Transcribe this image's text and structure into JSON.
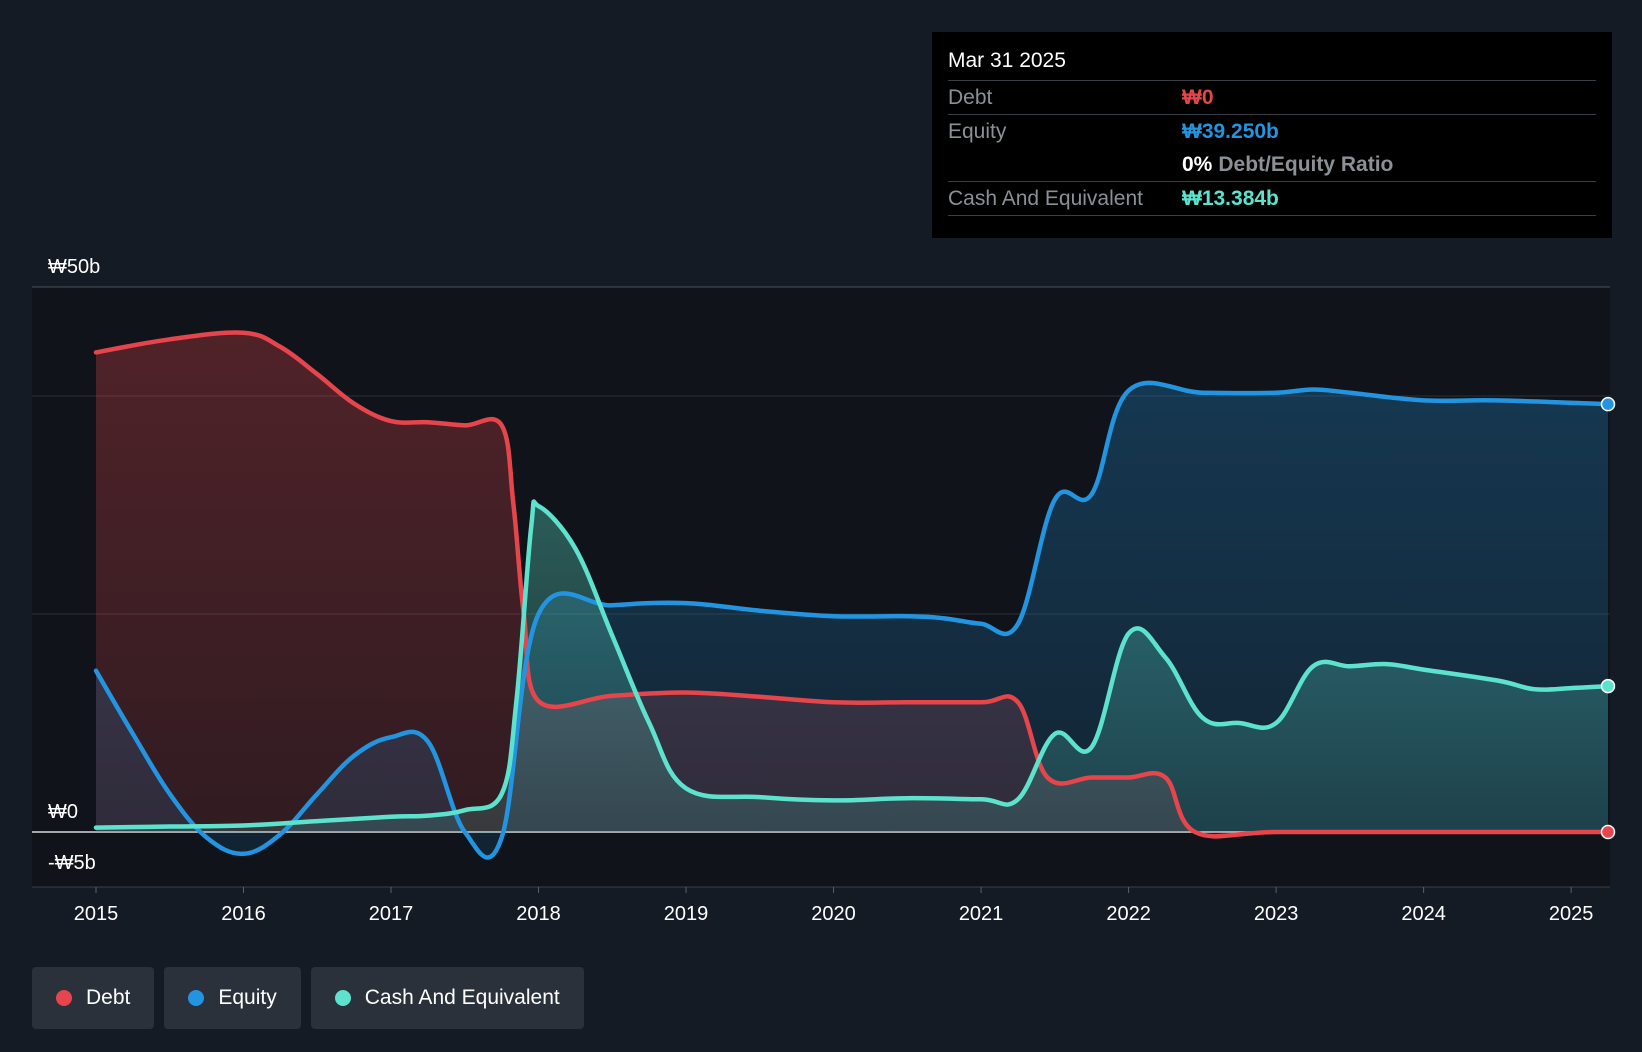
{
  "chart_data": {
    "type": "area",
    "y_unit": "₩",
    "ylim": [
      -5,
      50
    ],
    "y_ticks": [
      {
        "value": 50,
        "label": "₩50b"
      },
      {
        "value": 0,
        "label": "₩0"
      },
      {
        "value": -5,
        "label": "-₩5b"
      }
    ],
    "x_range": [
      2015.0,
      2025.25
    ],
    "x_ticks": [
      {
        "value": 2015,
        "label": "2015"
      },
      {
        "value": 2016,
        "label": "2016"
      },
      {
        "value": 2017,
        "label": "2017"
      },
      {
        "value": 2018,
        "label": "2018"
      },
      {
        "value": 2019,
        "label": "2019"
      },
      {
        "value": 2020,
        "label": "2020"
      },
      {
        "value": 2021,
        "label": "2021"
      },
      {
        "value": 2022,
        "label": "2022"
      },
      {
        "value": 2023,
        "label": "2023"
      },
      {
        "value": 2024,
        "label": "2024"
      },
      {
        "value": 2025,
        "label": "2025"
      }
    ],
    "gridlines": [
      50,
      40,
      20
    ],
    "series": [
      {
        "name": "Debt",
        "color": "#e5454b",
        "points": [
          [
            2015.0,
            44.0
          ],
          [
            2015.5,
            45.2
          ],
          [
            2016.0,
            45.8
          ],
          [
            2016.25,
            44.5
          ],
          [
            2016.5,
            42.0
          ],
          [
            2016.75,
            39.3
          ],
          [
            2017.0,
            37.7
          ],
          [
            2017.25,
            37.6
          ],
          [
            2017.5,
            37.3
          ],
          [
            2017.75,
            37.3
          ],
          [
            2017.83,
            30
          ],
          [
            2017.9,
            20
          ],
          [
            2018.0,
            12.0
          ],
          [
            2018.5,
            12.5
          ],
          [
            2019.0,
            12.8
          ],
          [
            2019.5,
            12.4
          ],
          [
            2020.0,
            11.9
          ],
          [
            2020.5,
            11.9
          ],
          [
            2021.0,
            11.9
          ],
          [
            2021.25,
            11.9
          ],
          [
            2021.45,
            5.0
          ],
          [
            2021.75,
            5.0
          ],
          [
            2022.0,
            5.0
          ],
          [
            2022.25,
            5.0
          ],
          [
            2022.45,
            0.0
          ],
          [
            2023.0,
            0.0
          ],
          [
            2024.0,
            0.0
          ],
          [
            2025.25,
            0.0
          ]
        ]
      },
      {
        "name": "Equity",
        "color": "#2394df",
        "points": [
          [
            2015.0,
            14.8
          ],
          [
            2015.25,
            9.0
          ],
          [
            2015.5,
            3.5
          ],
          [
            2015.75,
            -0.5
          ],
          [
            2016.0,
            -2.0
          ],
          [
            2016.25,
            -0.2
          ],
          [
            2016.5,
            3.5
          ],
          [
            2016.75,
            7.0
          ],
          [
            2017.0,
            8.7
          ],
          [
            2017.25,
            8.3
          ],
          [
            2017.5,
            0.0
          ],
          [
            2017.75,
            -0.5
          ],
          [
            2018.0,
            20.0
          ],
          [
            2018.5,
            20.8
          ],
          [
            2019.0,
            21.0
          ],
          [
            2019.5,
            20.3
          ],
          [
            2020.0,
            19.8
          ],
          [
            2020.5,
            19.8
          ],
          [
            2020.75,
            19.6
          ],
          [
            2021.0,
            19.1
          ],
          [
            2021.25,
            19.1
          ],
          [
            2021.5,
            30.5
          ],
          [
            2021.75,
            31.0
          ],
          [
            2022.0,
            40.5
          ],
          [
            2022.5,
            40.3
          ],
          [
            2023.0,
            40.3
          ],
          [
            2023.25,
            40.6
          ],
          [
            2023.5,
            40.3
          ],
          [
            2024.0,
            39.6
          ],
          [
            2024.5,
            39.6
          ],
          [
            2025.25,
            39.25
          ]
        ]
      },
      {
        "name": "Cash And Equivalent",
        "color": "#5de2cd",
        "points": [
          [
            2015.0,
            0.4
          ],
          [
            2015.5,
            0.5
          ],
          [
            2016.0,
            0.6
          ],
          [
            2016.5,
            1.0
          ],
          [
            2017.0,
            1.4
          ],
          [
            2017.25,
            1.5
          ],
          [
            2017.5,
            2.0
          ],
          [
            2017.75,
            3.5
          ],
          [
            2017.85,
            12
          ],
          [
            2017.95,
            28
          ],
          [
            2018.0,
            29.9
          ],
          [
            2018.25,
            26.0
          ],
          [
            2018.5,
            18.0
          ],
          [
            2018.75,
            10.0
          ],
          [
            2019.0,
            4.0
          ],
          [
            2019.5,
            3.2
          ],
          [
            2020.0,
            2.9
          ],
          [
            2020.5,
            3.1
          ],
          [
            2021.0,
            3.0
          ],
          [
            2021.25,
            3.0
          ],
          [
            2021.5,
            9.0
          ],
          [
            2021.75,
            7.8
          ],
          [
            2022.0,
            18.2
          ],
          [
            2022.25,
            16.0
          ],
          [
            2022.5,
            10.5
          ],
          [
            2022.75,
            10.0
          ],
          [
            2023.0,
            10.0
          ],
          [
            2023.25,
            15.2
          ],
          [
            2023.5,
            15.2
          ],
          [
            2023.75,
            15.4
          ],
          [
            2024.0,
            14.9
          ],
          [
            2024.5,
            13.9
          ],
          [
            2024.75,
            13.1
          ],
          [
            2025.0,
            13.2
          ],
          [
            2025.25,
            13.384
          ]
        ]
      }
    ]
  },
  "tooltip": {
    "date": "Mar 31 2025",
    "debt_label": "Debt",
    "debt_value": "₩0",
    "equity_label": "Equity",
    "equity_value": "₩39.250b",
    "ratio_pct": "0%",
    "ratio_label": "Debt/Equity Ratio",
    "cash_label": "Cash And Equivalent",
    "cash_value": "₩13.384b"
  },
  "legend": {
    "debt": "Debt",
    "equity": "Equity",
    "cash": "Cash And Equivalent"
  },
  "colors": {
    "background": "#151b24",
    "plot_background": "#10141a",
    "debt": "#e5454b",
    "equity": "#2394df",
    "cash": "#5de2cd"
  }
}
